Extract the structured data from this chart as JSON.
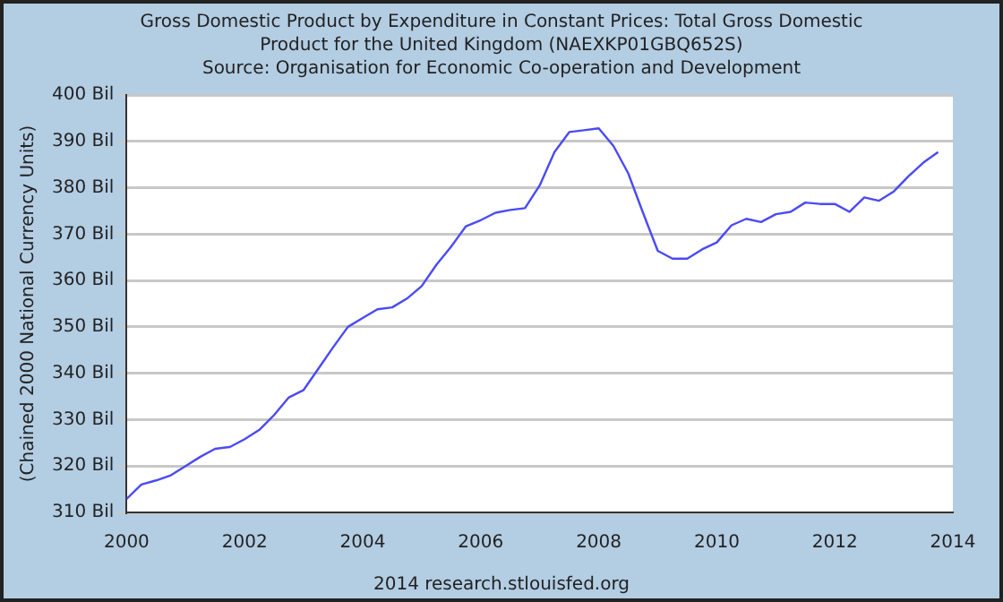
{
  "chart_data": {
    "type": "line",
    "title": "Gross Domestic Product by Expenditure in Constant Prices: Total Gross Domestic Product for the United Kingdom (NAEXKP01GBQ652S)",
    "subtitle": "Source: Organisation for Economic Co-operation and Development",
    "ylabel": "(Chained 2000 National Currency Units)",
    "annotations": [
      "2014 research.stlouisfed.org"
    ],
    "x": [
      2000,
      2000.25,
      2000.5,
      2000.75,
      2001,
      2001.25,
      2001.5,
      2001.75,
      2002,
      2002.25,
      2002.5,
      2002.75,
      2003,
      2003.25,
      2003.5,
      2003.75,
      2004,
      2004.25,
      2004.5,
      2004.75,
      2005,
      2005.25,
      2005.5,
      2005.75,
      2006,
      2006.25,
      2006.5,
      2006.75,
      2007,
      2007.25,
      2007.5,
      2007.75,
      2008,
      2008.25,
      2008.5,
      2008.75,
      2009,
      2009.25,
      2009.5,
      2009.75,
      2010,
      2010.25,
      2010.5,
      2010.75,
      2011,
      2011.25,
      2011.5,
      2011.75,
      2012,
      2012.25,
      2012.5,
      2012.75,
      2013,
      2013.25,
      2013.5,
      2013.75
    ],
    "series": [
      {
        "color": "#4a4af5",
        "values": [
          312.9,
          316,
          316.9,
          318,
          320,
          322,
          323.7,
          324.1,
          325.8,
          327.8,
          331,
          334.8,
          336.4,
          341,
          345.6,
          350,
          351.9,
          353.8,
          354.2,
          356.1,
          358.8,
          363.4,
          367.3,
          371.7,
          373,
          374.6,
          375.2,
          375.6,
          380.5,
          387.7,
          392,
          392.4,
          392.8,
          389,
          383.1,
          374.6,
          366.4,
          364.7,
          364.7,
          366.7,
          368.2,
          371.9,
          373.3,
          372.6,
          374.3,
          374.8,
          376.8,
          376.5,
          376.5,
          374.8,
          377.9,
          377.2,
          379.2,
          382.5,
          385.4,
          387.7
        ]
      }
    ],
    "xlim": [
      2000,
      2014
    ],
    "xticks": [
      2000,
      2002,
      2004,
      2006,
      2008,
      2010,
      2012,
      2014
    ],
    "ylim": [
      310,
      400
    ],
    "yticks": [
      {
        "value": 310,
        "label": "310 Bil"
      },
      {
        "value": 320,
        "label": "320 Bil"
      },
      {
        "value": 330,
        "label": "330 Bil"
      },
      {
        "value": 340,
        "label": "340 Bil"
      },
      {
        "value": 350,
        "label": "350 Bil"
      },
      {
        "value": 360,
        "label": "360 Bil"
      },
      {
        "value": 370,
        "label": "370 Bil"
      },
      {
        "value": 380,
        "label": "380 Bil"
      },
      {
        "value": 390,
        "label": "390 Bil"
      },
      {
        "value": 400,
        "label": "400 Bil"
      }
    ],
    "grid": "y",
    "legend": false,
    "marker": "none",
    "line_style": "solid"
  }
}
